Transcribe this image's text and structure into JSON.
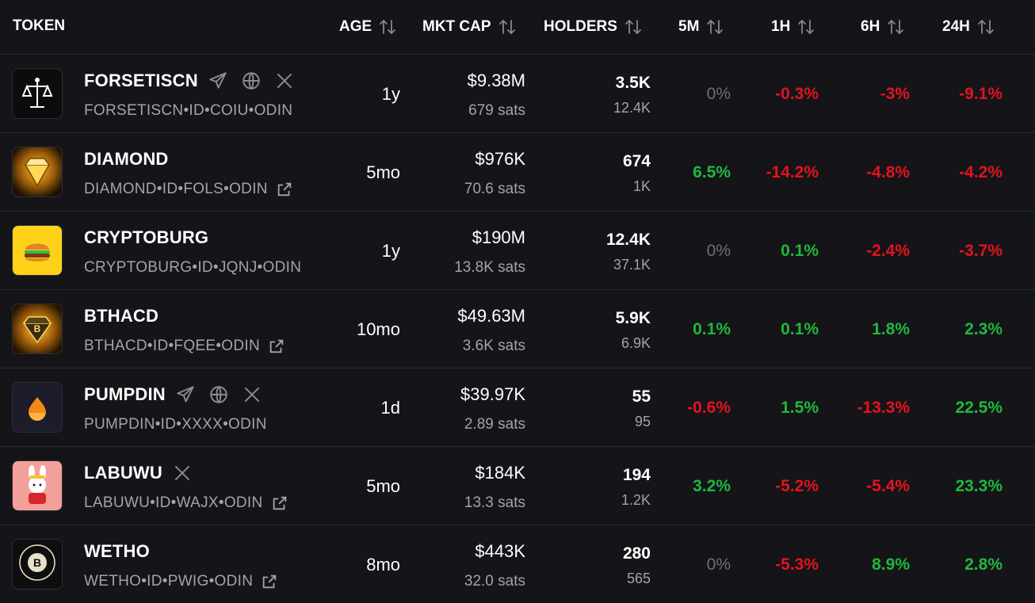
{
  "header": {
    "token": "TOKEN",
    "age": "AGE",
    "mkt_cap": "MKT CAP",
    "holders": "HOLDERS",
    "m5": "5M",
    "h1": "1H",
    "h6": "6H",
    "h24": "24H"
  },
  "rows": [
    {
      "name": "FORSETISCN",
      "ticker": "FORSETISCN•ID•COIU•ODIN",
      "age": "1y",
      "mcap": "$9.38M",
      "sats": "679 sats",
      "holders": "3.5K",
      "holders2": "12.4K",
      "m5": "0%",
      "h1": "-0.3%",
      "h6": "-3%",
      "h24": "-9.1%",
      "icons": [
        "telegram-icon",
        "globe-icon",
        "x-icon"
      ],
      "external_link": false
    },
    {
      "name": "DIAMOND",
      "ticker": "DIAMOND•ID•FOLS•ODIN",
      "age": "5mo",
      "mcap": "$976K",
      "sats": "70.6 sats",
      "holders": "674",
      "holders2": "1K",
      "m5": "6.5%",
      "h1": "-14.2%",
      "h6": "-4.8%",
      "h24": "-4.2%",
      "icons": [],
      "external_link": true
    },
    {
      "name": "CRYPTOBURG",
      "ticker": "CRYPTOBURG•ID•JQNJ•ODIN",
      "age": "1y",
      "mcap": "$190M",
      "sats": "13.8K sats",
      "holders": "12.4K",
      "holders2": "37.1K",
      "m5": "0%",
      "h1": "0.1%",
      "h6": "-2.4%",
      "h24": "-3.7%",
      "icons": [],
      "external_link": false
    },
    {
      "name": "BTHACD",
      "ticker": "BTHACD•ID•FQEE•ODIN",
      "age": "10mo",
      "mcap": "$49.63M",
      "sats": "3.6K sats",
      "holders": "5.9K",
      "holders2": "6.9K",
      "m5": "0.1%",
      "h1": "0.1%",
      "h6": "1.8%",
      "h24": "2.3%",
      "icons": [],
      "external_link": true
    },
    {
      "name": "PUMPDIN",
      "ticker": "PUMPDIN•ID•XXXX•ODIN",
      "age": "1d",
      "mcap": "$39.97K",
      "sats": "2.89 sats",
      "holders": "55",
      "holders2": "95",
      "m5": "-0.6%",
      "h1": "1.5%",
      "h6": "-13.3%",
      "h24": "22.5%",
      "icons": [
        "telegram-icon",
        "globe-icon",
        "x-icon"
      ],
      "external_link": false
    },
    {
      "name": "LABUWU",
      "ticker": "LABUWU•ID•WAJX•ODIN",
      "age": "5mo",
      "mcap": "$184K",
      "sats": "13.3 sats",
      "holders": "194",
      "holders2": "1.2K",
      "m5": "3.2%",
      "h1": "-5.2%",
      "h6": "-5.4%",
      "h24": "23.3%",
      "icons": [
        "x-icon"
      ],
      "external_link": true
    },
    {
      "name": "WETHO",
      "ticker": "WETHO•ID•PWIG•ODIN",
      "age": "8mo",
      "mcap": "$443K",
      "sats": "32.0 sats",
      "holders": "280",
      "holders2": "565",
      "m5": "0%",
      "h1": "-5.3%",
      "h6": "8.9%",
      "h24": "2.8%",
      "icons": [],
      "external_link": true
    }
  ],
  "colors": {
    "background": "#141419",
    "positive": "#1fb83b",
    "negative": "#e3131c",
    "muted": "#a3a3ab"
  }
}
